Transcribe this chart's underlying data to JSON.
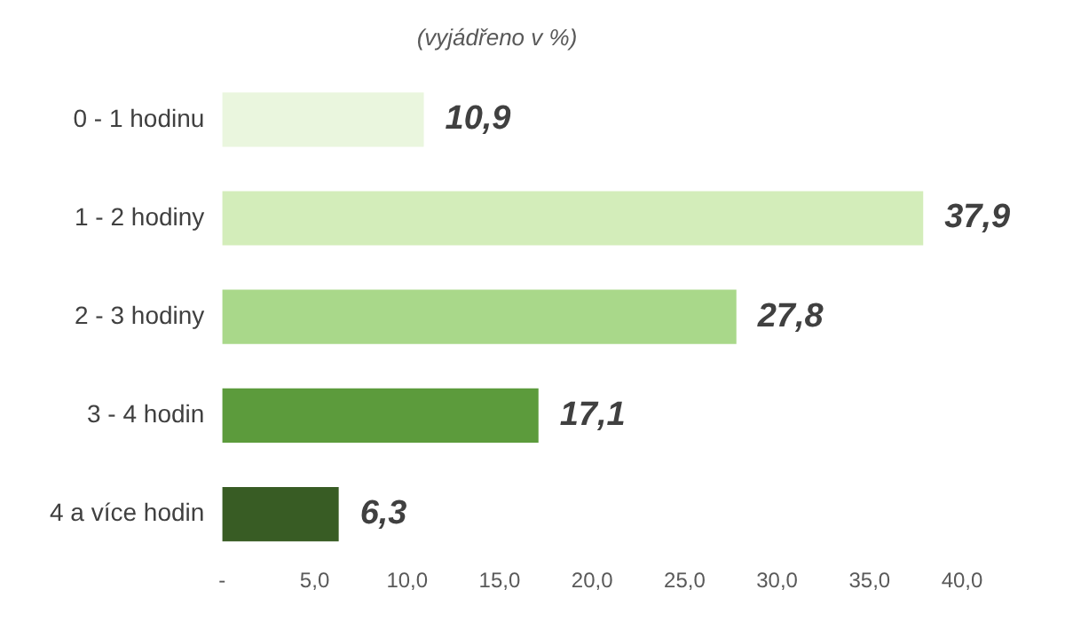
{
  "chart_data": {
    "type": "bar",
    "orientation": "horizontal",
    "title": "(vyjádřeno v %)",
    "categories": [
      "0 - 1 hodinu",
      "1 - 2 hodiny",
      "2 - 3 hodiny",
      "3 - 4 hodin",
      "4 a více hodin"
    ],
    "values": [
      10.9,
      37.9,
      27.8,
      17.1,
      6.3
    ],
    "colors": [
      "#eaf6de",
      "#d3edba",
      "#a9d88a",
      "#5c9b3c",
      "#385c24"
    ],
    "value_labels": [
      "10,9",
      "37,9",
      "27,8",
      "17,1",
      "6,3"
    ],
    "xlim": [
      0,
      40
    ],
    "xticks": [
      {
        "value": 0,
        "label": "-"
      },
      {
        "value": 5,
        "label": "5,0"
      },
      {
        "value": 10,
        "label": "10,0"
      },
      {
        "value": 15,
        "label": "15,0"
      },
      {
        "value": 20,
        "label": "20,0"
      },
      {
        "value": 25,
        "label": "25,0"
      },
      {
        "value": 30,
        "label": "30,0"
      },
      {
        "value": 35,
        "label": "35,0"
      },
      {
        "value": 40,
        "label": "40,0"
      }
    ],
    "grid": false,
    "legend": false
  }
}
